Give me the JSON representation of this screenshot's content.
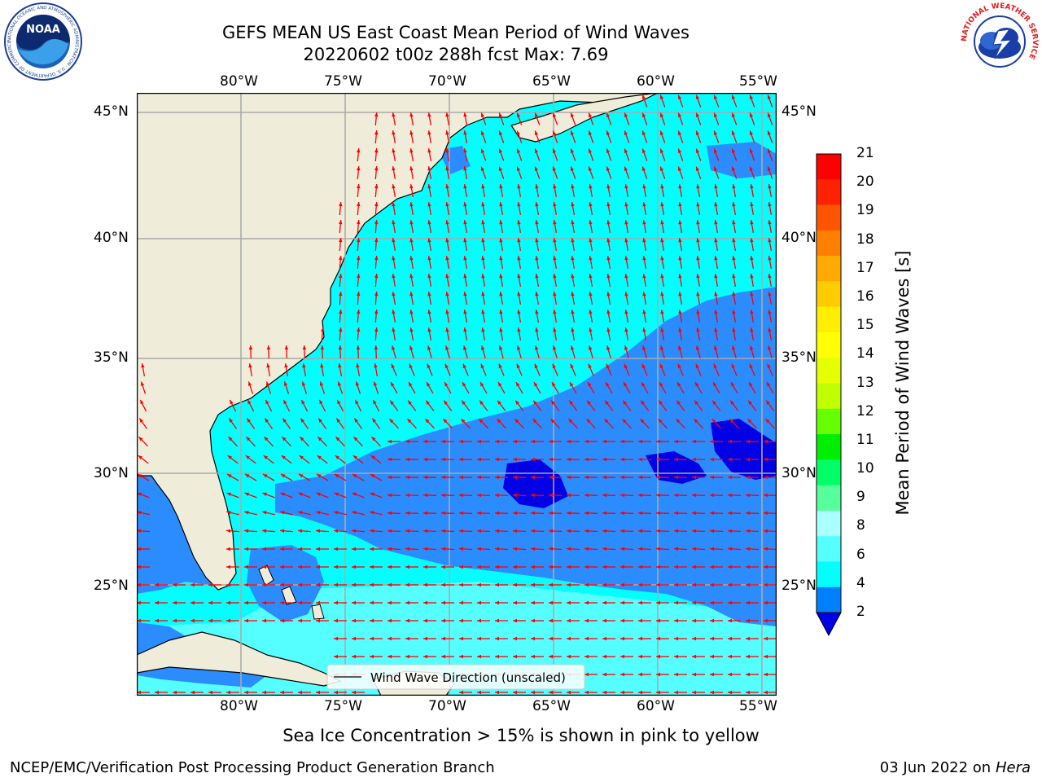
{
  "title": {
    "line1": "GEFS MEAN US East Coast Mean Period of Wind Waves",
    "line2": "20220602 t00z 288h fcst   Max: 7.69"
  },
  "logos": {
    "left": {
      "icon": "noaa-logo",
      "text": "NOAA",
      "ring_text": "NATIONAL OCEANIC AND ATMOSPHERIC ADMINISTRATION · U.S. DEPARTMENT OF COMMERCE"
    },
    "right": {
      "icon": "national-weather-service-logo",
      "ring_text": "NATIONAL WEATHER SERVICE"
    }
  },
  "map": {
    "lon_labels": [
      "80°W",
      "75°W",
      "70°W",
      "65°W",
      "60°W",
      "55°W"
    ],
    "lat_labels": [
      "45°N",
      "40°N",
      "35°N",
      "30°N",
      "25°N"
    ],
    "legend_label": "Wind Wave Direction (unscaled)",
    "colors": {
      "land": "#efedda",
      "ocean_4_6": "#00ffff",
      "ocean_2_4": "#2b8cff",
      "ocean_lt2": "#0000e6",
      "ocean_6_8": "#55ffff",
      "arrow": "#ff0000",
      "grid": "#aaaaaa"
    }
  },
  "colorbar": {
    "label": "Mean Period of Wind Waves [s]",
    "ticks": [
      "21",
      "20",
      "19",
      "18",
      "17",
      "16",
      "15",
      "14",
      "13",
      "12",
      "11",
      "10",
      "9",
      "8",
      "6",
      "4",
      "2"
    ],
    "colors": [
      "#ff0000",
      "#ff2200",
      "#ff5500",
      "#ff8000",
      "#ffaa00",
      "#ffcc00",
      "#ffee00",
      "#ffff00",
      "#e5ff00",
      "#bfff00",
      "#66ff00",
      "#00ee00",
      "#00ff66",
      "#55ff99",
      "#aaffff",
      "#55ffff",
      "#00ffff",
      "#0080ff"
    ],
    "under_color": "#0000e6"
  },
  "notes": {
    "ice": "Sea Ice Concentration > 15% is shown in pink to yellow"
  },
  "footer": {
    "left": "NCEP/EMC/Verification Post Processing Product Generation Branch",
    "date": "03 Jun 2022 on",
    "machine": "Hera"
  }
}
